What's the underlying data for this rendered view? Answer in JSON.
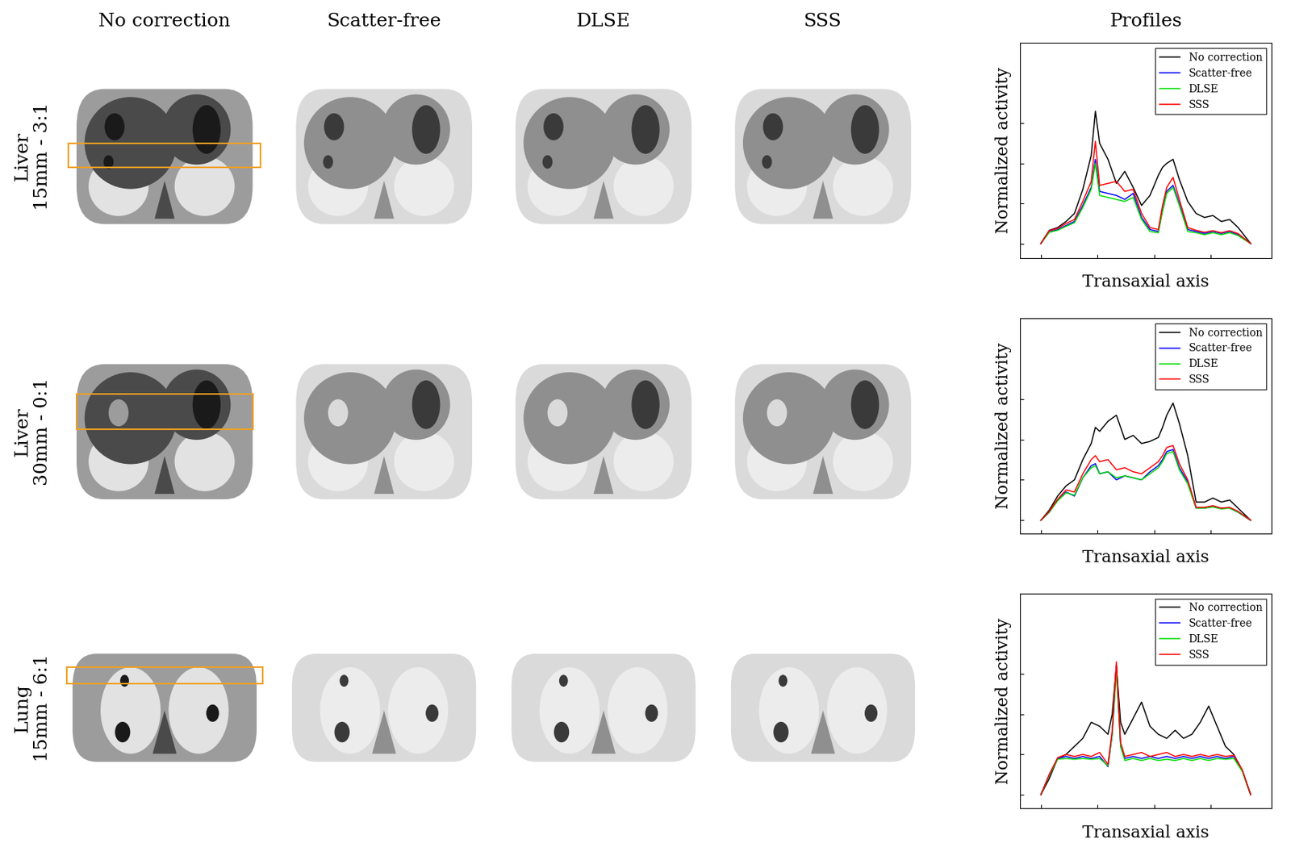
{
  "column_titles": [
    "No correction",
    "Scatter-free",
    "DLSE",
    "SSS",
    "Profiles"
  ],
  "row_labels": [
    [
      "Liver",
      "15mm - 3:1"
    ],
    [
      "Liver",
      "30mm - 0:1"
    ],
    [
      "Lung",
      "15mm - 6:1"
    ]
  ],
  "chart_data": [
    {
      "type": "line",
      "xlabel": "Transaxial axis",
      "ylabel": "Normalized activity",
      "x": [
        0,
        4,
        8,
        12,
        16,
        20,
        24,
        26,
        28,
        32,
        36,
        40,
        44,
        48,
        52,
        56,
        58,
        60,
        63,
        66,
        70,
        74,
        78,
        82,
        86,
        90,
        94,
        100
      ],
      "xlim": [
        -10,
        110
      ],
      "ylim": [
        -0.36,
        5.0
      ],
      "xticks": [
        0,
        27,
        54,
        81
      ],
      "yticks": [
        0,
        1,
        2,
        3
      ],
      "tick_labels": false,
      "legend": "upper right",
      "series": [
        {
          "name": "No correction",
          "color": "#000000",
          "values": [
            0,
            0.33,
            0.4,
            0.55,
            0.75,
            1.35,
            2.2,
            3.3,
            2.5,
            2.1,
            1.5,
            1.8,
            1.4,
            0.95,
            1.2,
            1.7,
            1.9,
            2.0,
            2.1,
            1.6,
            1.05,
            0.75,
            0.65,
            0.7,
            0.55,
            0.6,
            0.4,
            0
          ]
        },
        {
          "name": "Scatter-free",
          "color": "#0000ff",
          "values": [
            0,
            0.3,
            0.35,
            0.45,
            0.55,
            0.95,
            1.4,
            2.1,
            1.3,
            1.25,
            1.2,
            1.1,
            1.25,
            0.65,
            0.35,
            0.3,
            0.85,
            1.3,
            1.45,
            1.0,
            0.35,
            0.3,
            0.25,
            0.3,
            0.25,
            0.3,
            0.22,
            0
          ]
        },
        {
          "name": "DLSE",
          "color": "#00dd00",
          "values": [
            0,
            0.28,
            0.33,
            0.43,
            0.52,
            0.9,
            1.35,
            2.0,
            1.2,
            1.15,
            1.1,
            1.05,
            1.15,
            0.6,
            0.3,
            0.27,
            0.8,
            1.25,
            1.4,
            0.95,
            0.3,
            0.27,
            0.22,
            0.27,
            0.22,
            0.27,
            0.2,
            0
          ]
        },
        {
          "name": "SSS",
          "color": "#ff0000",
          "values": [
            0,
            0.32,
            0.38,
            0.5,
            0.6,
            1.05,
            1.55,
            2.55,
            1.45,
            1.5,
            1.55,
            1.3,
            1.35,
            0.75,
            0.4,
            0.35,
            0.95,
            1.4,
            1.65,
            1.1,
            0.4,
            0.33,
            0.28,
            0.32,
            0.27,
            0.32,
            0.25,
            0
          ]
        }
      ]
    },
    {
      "type": "line",
      "xlabel": "Transaxial axis",
      "ylabel": "Normalized activity",
      "x": [
        0,
        4,
        8,
        12,
        16,
        20,
        24,
        26,
        28,
        32,
        36,
        40,
        44,
        48,
        52,
        56,
        58,
        60,
        63,
        66,
        70,
        74,
        78,
        82,
        86,
        90,
        94,
        100
      ],
      "xlim": [
        -10,
        110
      ],
      "ylim": [
        -0.32,
        5.0
      ],
      "xticks": [
        0,
        27,
        54,
        81
      ],
      "yticks": [
        0,
        1,
        2,
        3
      ],
      "tick_labels": false,
      "legend": "upper right",
      "series": [
        {
          "name": "No correction",
          "color": "#000000",
          "values": [
            0,
            0.25,
            0.6,
            0.85,
            1.0,
            1.5,
            1.9,
            2.3,
            2.2,
            2.45,
            2.6,
            2.0,
            2.1,
            1.9,
            1.95,
            2.05,
            2.3,
            2.6,
            2.9,
            2.4,
            1.6,
            0.45,
            0.45,
            0.55,
            0.45,
            0.5,
            0.3,
            0
          ]
        },
        {
          "name": "Scatter-free",
          "color": "#0000ff",
          "values": [
            0,
            0.2,
            0.5,
            0.7,
            0.6,
            1.05,
            1.35,
            1.4,
            1.15,
            1.2,
            1.0,
            1.1,
            1.05,
            1.0,
            1.2,
            1.35,
            1.5,
            1.7,
            1.75,
            1.3,
            0.95,
            0.3,
            0.3,
            0.35,
            0.3,
            0.3,
            0.2,
            0
          ]
        },
        {
          "name": "DLSE",
          "color": "#00dd00",
          "values": [
            0,
            0.2,
            0.48,
            0.68,
            0.62,
            1.05,
            1.3,
            1.35,
            1.15,
            1.2,
            1.05,
            1.1,
            1.05,
            1.0,
            1.15,
            1.3,
            1.45,
            1.65,
            1.7,
            1.25,
            0.9,
            0.3,
            0.3,
            0.33,
            0.28,
            0.3,
            0.2,
            0
          ]
        },
        {
          "name": "SSS",
          "color": "#ff0000",
          "values": [
            0,
            0.22,
            0.52,
            0.75,
            0.7,
            1.15,
            1.5,
            1.6,
            1.45,
            1.5,
            1.25,
            1.3,
            1.2,
            1.15,
            1.3,
            1.45,
            1.6,
            1.8,
            1.85,
            1.4,
            1.0,
            0.32,
            0.32,
            0.36,
            0.3,
            0.32,
            0.22,
            0
          ]
        }
      ]
    },
    {
      "type": "line",
      "xlabel": "Transaxial axis",
      "ylabel": "Normalized activity",
      "x": [
        0,
        4,
        8,
        12,
        16,
        20,
        24,
        28,
        32,
        34,
        36,
        38,
        40,
        44,
        48,
        52,
        56,
        60,
        64,
        68,
        72,
        76,
        80,
        84,
        88,
        92,
        96,
        100
      ],
      "xlim": [
        -10,
        110
      ],
      "ylim": [
        -0.34,
        5.0
      ],
      "xticks": [
        0,
        27,
        54,
        81
      ],
      "yticks": [
        0,
        1,
        2,
        3
      ],
      "tick_labels": false,
      "legend": "upper right",
      "series": [
        {
          "name": "No correction",
          "color": "#000000",
          "values": [
            0,
            0.4,
            0.9,
            1.0,
            1.2,
            1.4,
            1.8,
            1.7,
            1.5,
            2.0,
            3.2,
            1.8,
            1.5,
            1.9,
            2.3,
            1.7,
            1.5,
            1.4,
            1.6,
            1.4,
            1.5,
            1.8,
            2.2,
            1.7,
            1.2,
            1.0,
            0.6,
            0
          ]
        },
        {
          "name": "Scatter-free",
          "color": "#0000ff",
          "values": [
            0,
            0.5,
            0.9,
            0.95,
            0.9,
            0.95,
            0.9,
            0.95,
            0.7,
            1.5,
            3.2,
            1.2,
            0.9,
            0.95,
            0.9,
            0.95,
            0.9,
            0.95,
            0.9,
            0.95,
            0.9,
            0.95,
            0.9,
            0.95,
            0.9,
            0.95,
            0.6,
            0
          ]
        },
        {
          "name": "DLSE",
          "color": "#00dd00",
          "values": [
            0,
            0.48,
            0.88,
            0.9,
            0.88,
            0.9,
            0.88,
            0.9,
            0.72,
            1.5,
            3.1,
            1.2,
            0.85,
            0.9,
            0.85,
            0.9,
            0.85,
            0.88,
            0.85,
            0.9,
            0.85,
            0.9,
            0.85,
            0.9,
            0.88,
            0.9,
            0.58,
            0
          ]
        },
        {
          "name": "SSS",
          "color": "#ff0000",
          "values": [
            0,
            0.5,
            0.92,
            1.0,
            0.95,
            1.0,
            0.95,
            1.05,
            0.75,
            1.6,
            3.3,
            1.3,
            0.95,
            1.0,
            1.05,
            0.95,
            1.0,
            1.05,
            0.95,
            1.0,
            0.95,
            1.0,
            0.95,
            1.0,
            0.95,
            0.98,
            0.62,
            0
          ]
        }
      ]
    }
  ]
}
